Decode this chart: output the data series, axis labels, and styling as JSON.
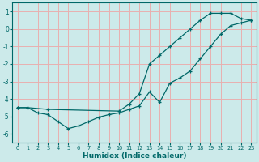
{
  "xlabel": "Humidex (Indice chaleur)",
  "bg_color": "#cceaea",
  "grid_color": "#e8b0b0",
  "line_color": "#006868",
  "xlim": [
    -0.5,
    23.5
  ],
  "ylim": [
    -6.5,
    1.5
  ],
  "xticks": [
    0,
    1,
    2,
    3,
    4,
    5,
    6,
    7,
    8,
    9,
    10,
    11,
    12,
    13,
    14,
    15,
    16,
    17,
    18,
    19,
    20,
    21,
    22,
    23
  ],
  "yticks": [
    -6,
    -5,
    -4,
    -3,
    -2,
    -1,
    0,
    1
  ],
  "line1_x": [
    0,
    1,
    3,
    10,
    11,
    12,
    13,
    14,
    15,
    16,
    17,
    18,
    19,
    20,
    21,
    22,
    23
  ],
  "line1_y": [
    -4.5,
    -4.5,
    -4.6,
    -4.7,
    -4.3,
    -3.7,
    -2.0,
    -1.5,
    -1.0,
    -0.5,
    0.0,
    0.5,
    0.9,
    0.9,
    0.9,
    0.6,
    0.5
  ],
  "line2_x": [
    0,
    1,
    2,
    3,
    4,
    5,
    6,
    7,
    8,
    9,
    10,
    11,
    12,
    13,
    14,
    15,
    16,
    17,
    18,
    19,
    20,
    21,
    22,
    23
  ],
  "line2_y": [
    -4.5,
    -4.5,
    -4.8,
    -4.9,
    -5.3,
    -5.7,
    -5.55,
    -5.3,
    -5.05,
    -4.9,
    -4.8,
    -4.6,
    -4.4,
    -3.6,
    -4.2,
    -3.1,
    -2.8,
    -2.4,
    -1.7,
    -1.0,
    -0.3,
    0.2,
    0.35,
    0.5
  ]
}
